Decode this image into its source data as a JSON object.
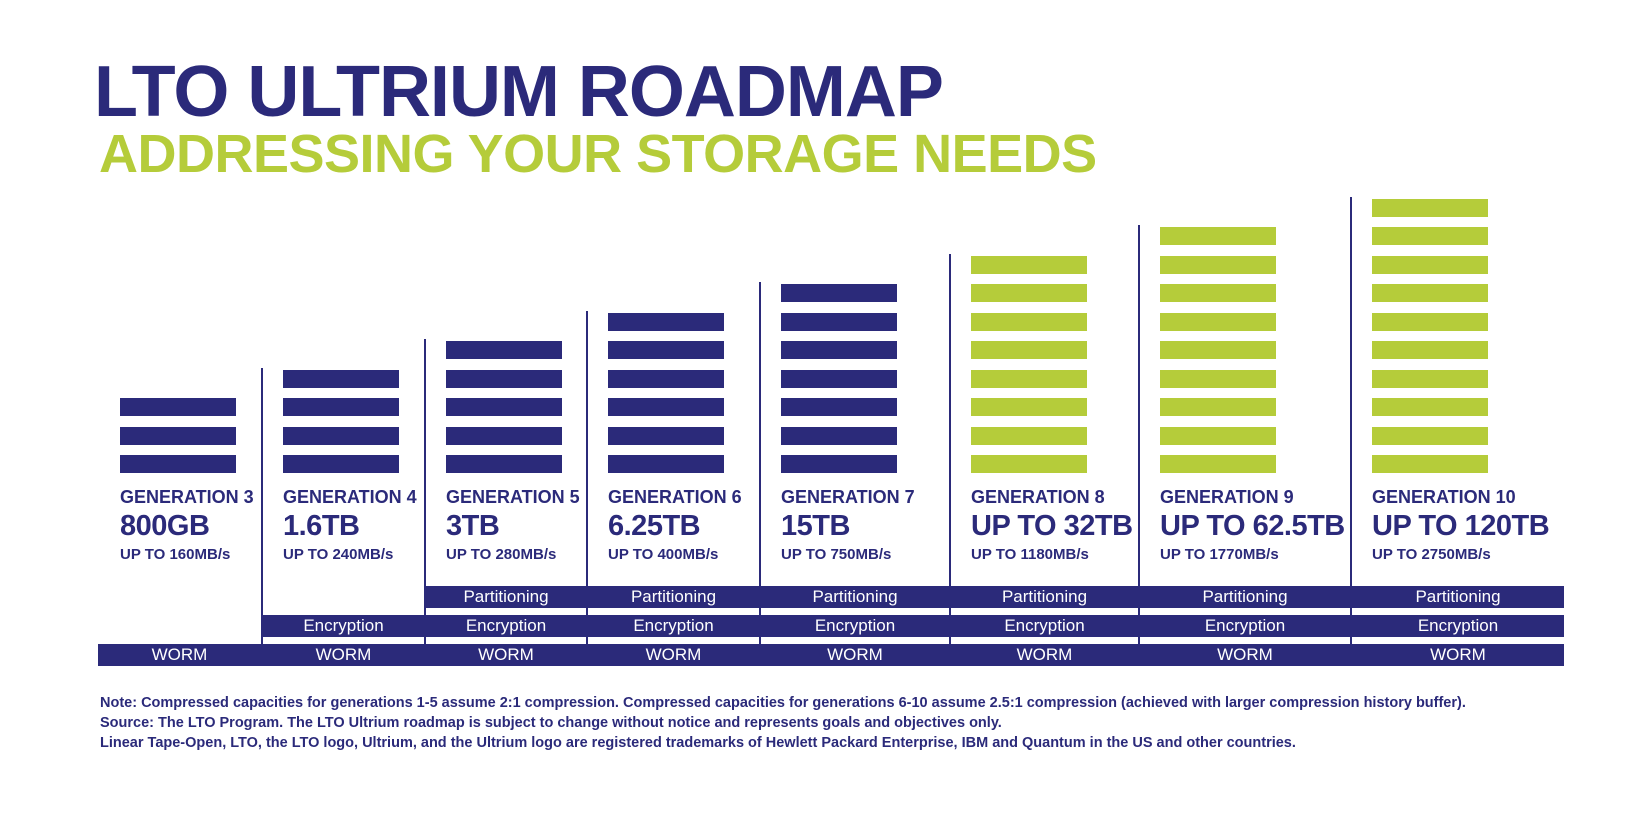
{
  "title": "LTO ULTRIUM ROADMAP",
  "subtitle": "ADDRESSING YOUR STORAGE NEEDS",
  "colors": {
    "navy": "#2b2a7a",
    "green": "#b5cc3a"
  },
  "chart_data": {
    "type": "bar",
    "generations": [
      {
        "label": "GENERATION 3",
        "capacity": "800GB",
        "speed": "UP TO 160MB/s",
        "stripes": 3,
        "color": "navy",
        "features": [
          "WORM"
        ]
      },
      {
        "label": "GENERATION 4",
        "capacity": "1.6TB",
        "speed": "UP TO 240MB/s",
        "stripes": 4,
        "color": "navy",
        "features": [
          "WORM",
          "Encryption"
        ]
      },
      {
        "label": "GENERATION 5",
        "capacity": "3TB",
        "speed": "UP TO 280MB/s",
        "stripes": 5,
        "color": "navy",
        "features": [
          "WORM",
          "Encryption",
          "Partitioning"
        ]
      },
      {
        "label": "GENERATION 6",
        "capacity": "6.25TB",
        "speed": "UP TO 400MB/s",
        "stripes": 6,
        "color": "navy",
        "features": [
          "WORM",
          "Encryption",
          "Partitioning"
        ]
      },
      {
        "label": "GENERATION 7",
        "capacity": "15TB",
        "speed": "UP TO 750MB/s",
        "stripes": 7,
        "color": "navy",
        "features": [
          "WORM",
          "Encryption",
          "Partitioning"
        ]
      },
      {
        "label": "GENERATION 8",
        "capacity": "UP TO 32TB",
        "speed": "UP TO 1180MB/s",
        "stripes": 8,
        "color": "green",
        "features": [
          "WORM",
          "Encryption",
          "Partitioning"
        ]
      },
      {
        "label": "GENERATION 9",
        "capacity": "UP TO 62.5TB",
        "speed": "UP TO 1770MB/s",
        "stripes": 9,
        "color": "green",
        "features": [
          "WORM",
          "Encryption",
          "Partitioning"
        ]
      },
      {
        "label": "GENERATION 10",
        "capacity": "UP TO 120TB",
        "speed": "UP TO 2750MB/s",
        "stripes": 10,
        "color": "green",
        "features": [
          "WORM",
          "Encryption",
          "Partitioning"
        ]
      }
    ]
  },
  "notes": [
    "Note:  Compressed capacities for generations 1-5 assume 2:1 compression. Compressed capacities for generations 6-10 assume 2.5:1 compression (achieved with larger compression history buffer).",
    "Source:  The LTO Program. The LTO Ultrium roadmap is subject to change without notice and represents goals and objectives only.",
    "Linear Tape-Open, LTO, the LTO logo, Ultrium, and the Ultrium logo are registered trademarks of Hewlett Packard Enterprise, IBM and Quantum in the US and other countries."
  ]
}
